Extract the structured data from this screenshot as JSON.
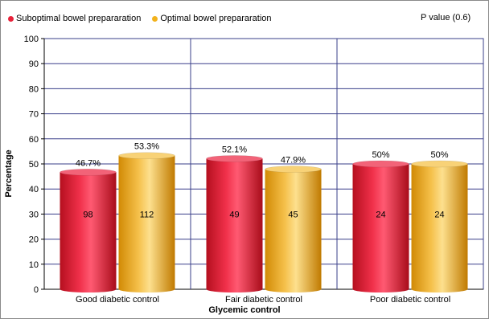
{
  "chart_data": {
    "type": "bar",
    "title": "",
    "xlabel": "Glycemic control",
    "ylabel": "Percentage",
    "ylim": [
      0,
      100
    ],
    "yticks": [
      "0",
      "10",
      "20",
      "30",
      "40",
      "50",
      "60",
      "70",
      "80",
      "90",
      "100"
    ],
    "categories": [
      "Good diabetic control",
      "Fair diabetic control",
      "Poor diabetic control"
    ],
    "series": [
      {
        "name": "Suboptimal bowel prepararation",
        "color": "#e8223a",
        "values": [
          46.7,
          52.1,
          50
        ],
        "value_labels": [
          "46.7%",
          "52.1%",
          "50%"
        ],
        "count_labels": [
          "98",
          "49",
          "24"
        ]
      },
      {
        "name": "Optimal bowel prepararation",
        "color": "#f2b21c",
        "values": [
          53.3,
          47.9,
          50
        ],
        "value_labels": [
          "53.3%",
          "47.9%",
          "50%"
        ],
        "count_labels": [
          "112",
          "45",
          "24"
        ]
      }
    ],
    "grid": true,
    "legend_position": "top-left",
    "annotation": "P value (0.6)"
  }
}
